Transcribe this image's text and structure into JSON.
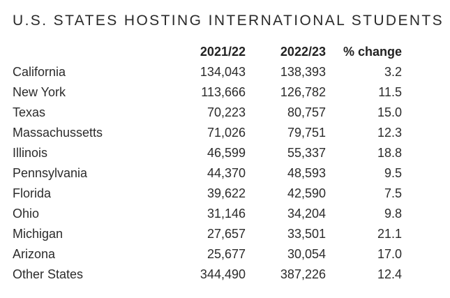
{
  "title": "U.S. STATES HOSTING INTERNATIONAL STUDENTS",
  "headers": {
    "state": "",
    "y2021": "2021/22",
    "y2022": "2022/23",
    "pct": "% change"
  },
  "rows": [
    {
      "state": "California",
      "y2021": "134,043",
      "y2022": "138,393",
      "pct": "3.2"
    },
    {
      "state": "New York",
      "y2021": "113,666",
      "y2022": "126,782",
      "pct": "11.5"
    },
    {
      "state": "Texas",
      "y2021": "70,223",
      "y2022": "80,757",
      "pct": "15.0"
    },
    {
      "state": "Massachussetts",
      "y2021": "71,026",
      "y2022": "79,751",
      "pct": "12.3"
    },
    {
      "state": "Illinois",
      "y2021": "46,599",
      "y2022": "55,337",
      "pct": "18.8"
    },
    {
      "state": "Pennsylvania",
      "y2021": "44,370",
      "y2022": "48,593",
      "pct": "9.5"
    },
    {
      "state": "Florida",
      "y2021": "39,622",
      "y2022": "42,590",
      "pct": "7.5"
    },
    {
      "state": "Ohio",
      "y2021": "31,146",
      "y2022": "34,204",
      "pct": "9.8"
    },
    {
      "state": "Michigan",
      "y2021": "27,657",
      "y2022": "33,501",
      "pct": "21.1"
    },
    {
      "state": "Arizona",
      "y2021": "25,677",
      "y2022": "30,054",
      "pct": "17.0"
    },
    {
      "state": "Other States",
      "y2021": "344,490",
      "y2022": "387,226",
      "pct": "12.4"
    }
  ]
}
